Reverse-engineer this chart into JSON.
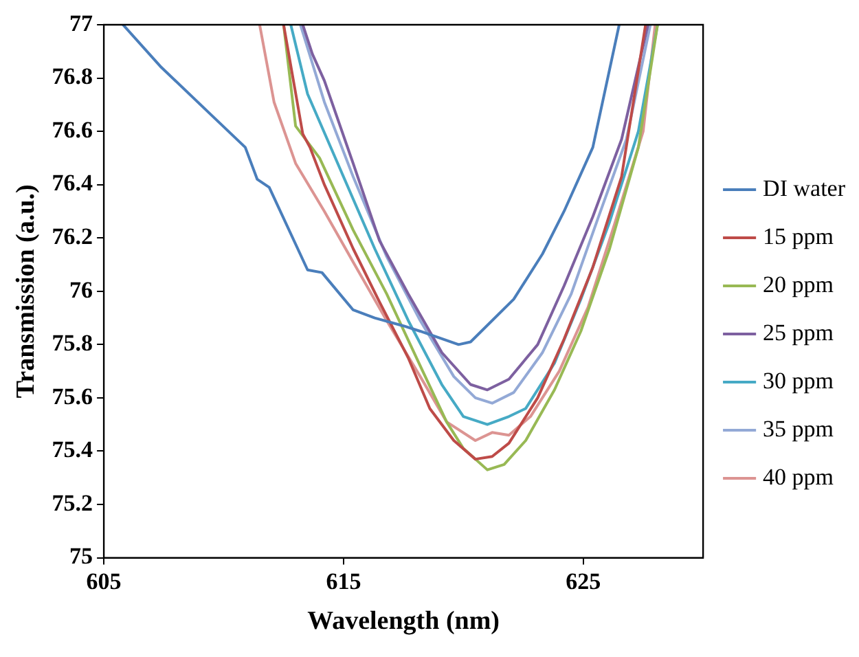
{
  "chart_data": {
    "type": "line",
    "xlabel": "Wavelength (nm)",
    "ylabel": "Transmission (a.u.)",
    "xlim": [
      605,
      630
    ],
    "xticks": [
      605,
      615,
      625
    ],
    "ylim": [
      75,
      77
    ],
    "yticks": [
      75,
      75.2,
      75.4,
      75.6,
      75.8,
      76,
      76.2,
      76.4,
      76.6,
      76.8,
      77
    ],
    "grid": false,
    "legend": "right",
    "marker": "none",
    "line_style": "solid",
    "series": [
      {
        "name": "DI water",
        "color": "#4a7ebb",
        "x": [
          605.8,
          607.4,
          609.5,
          610.9,
          611.4,
          611.9,
          613.5,
          614.1,
          615.4,
          616.3,
          617.5,
          618.2,
          619.8,
          620.3,
          622.1,
          623.3,
          624.2,
          625.4,
          626.5
        ],
        "values": [
          77,
          76.84,
          76.66,
          76.54,
          76.42,
          76.39,
          76.08,
          76.07,
          75.93,
          75.9,
          75.87,
          75.85,
          75.8,
          75.81,
          75.97,
          76.14,
          76.3,
          76.54,
          77
        ]
      },
      {
        "name": "15 ppm",
        "color": "#be4b48",
        "x": [
          612.5,
          613.3,
          613.6,
          614.2,
          615.4,
          616.5,
          617.7,
          618.6,
          619.6,
          620.5,
          621.2,
          621.9,
          623.1,
          624.2,
          625.4,
          626.6,
          627.6
        ],
        "values": [
          77,
          76.59,
          76.54,
          76.4,
          76.16,
          75.96,
          75.75,
          75.56,
          75.44,
          75.37,
          75.38,
          75.43,
          75.6,
          75.82,
          76.09,
          76.43,
          77
        ]
      },
      {
        "name": "20 ppm",
        "color": "#98b954",
        "x": [
          612.5,
          613,
          614,
          615.4,
          616.8,
          618.2,
          619.3,
          620,
          621,
          621.7,
          622.6,
          623.8,
          624.9,
          626.1,
          627.3,
          628.1
        ],
        "values": [
          77,
          76.62,
          76.5,
          76.23,
          75.99,
          75.72,
          75.51,
          75.41,
          75.33,
          75.35,
          75.44,
          75.63,
          75.85,
          76.16,
          76.54,
          77
        ]
      },
      {
        "name": "25 ppm",
        "color": "#7d60a0",
        "x": [
          613.3,
          613.7,
          614.2,
          615.4,
          616.5,
          617.7,
          619.1,
          620.3,
          621,
          621.9,
          623.1,
          624.2,
          625.4,
          626.6,
          627.7
        ],
        "values": [
          77,
          76.89,
          76.79,
          76.48,
          76.19,
          75.99,
          75.77,
          75.65,
          75.63,
          75.67,
          75.8,
          76.02,
          76.28,
          76.57,
          77
        ]
      },
      {
        "name": "30 ppm",
        "color": "#46aac5",
        "x": [
          612.8,
          613.5,
          614.9,
          616.3,
          617.7,
          619.1,
          620,
          621,
          621.9,
          622.6,
          623.8,
          624.9,
          626.1,
          627.3,
          628.1
        ],
        "values": [
          77,
          76.74,
          76.45,
          76.16,
          75.89,
          75.65,
          75.53,
          75.5,
          75.53,
          75.56,
          75.73,
          75.97,
          76.26,
          76.6,
          77
        ]
      },
      {
        "name": "35 ppm",
        "color": "#93a9d6",
        "x": [
          613.2,
          614.2,
          615.4,
          616.8,
          618.2,
          619.6,
          620.5,
          621.2,
          622.1,
          623.3,
          624.5,
          625.6,
          626.8,
          627.8
        ],
        "values": [
          77,
          76.71,
          76.43,
          76.13,
          75.89,
          75.68,
          75.6,
          75.58,
          75.62,
          75.77,
          75.99,
          76.27,
          76.57,
          77
        ]
      },
      {
        "name": "40 ppm",
        "color": "#dc9492",
        "x": [
          611.5,
          612.1,
          613,
          614.2,
          615.4,
          616.8,
          618.2,
          619.3,
          620.5,
          621.2,
          621.9,
          622.8,
          624,
          625.2,
          626.3,
          627.5,
          628
        ],
        "values": [
          77,
          76.71,
          76.48,
          76.3,
          76.11,
          75.89,
          75.68,
          75.51,
          75.44,
          75.47,
          75.46,
          75.53,
          75.7,
          75.94,
          76.25,
          76.6,
          77
        ]
      }
    ]
  }
}
